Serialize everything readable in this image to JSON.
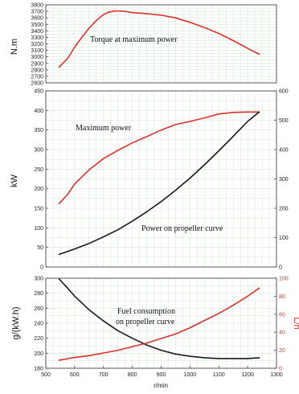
{
  "colors": {
    "red_series": "#d9322b",
    "black_series": "#1a1a1a",
    "grid": "#cfe7cf",
    "frame": "#333333"
  },
  "chart_data": [
    {
      "type": "line",
      "ylabel": "N.m",
      "xlim": [
        500,
        1300
      ],
      "ylim": [
        2600,
        3800
      ],
      "yticks": [
        2600,
        2700,
        2800,
        2900,
        3000,
        3100,
        3200,
        3300,
        3400,
        3500,
        3600,
        3700,
        3800
      ],
      "grid": true,
      "series": [
        {
          "name": "Torque at maximum power",
          "color": "red",
          "x": [
            546,
            560,
            578,
            600,
            625,
            650,
            675,
            700,
            720,
            740,
            760,
            780,
            800,
            850,
            900,
            950,
            1000,
            1050,
            1100,
            1150,
            1200,
            1240
          ],
          "y": [
            2840,
            2905,
            2990,
            3150,
            3300,
            3440,
            3560,
            3650,
            3690,
            3705,
            3705,
            3695,
            3680,
            3665,
            3640,
            3600,
            3530,
            3450,
            3360,
            3250,
            3130,
            3040
          ]
        }
      ]
    },
    {
      "type": "line",
      "ylabel": "kW",
      "xlim": [
        500,
        1300
      ],
      "ylim": [
        0,
        450
      ],
      "yticks": [
        0,
        50,
        100,
        150,
        200,
        250,
        300,
        350,
        400,
        450
      ],
      "y2lim": [
        0,
        600
      ],
      "y2ticks": [
        0,
        100,
        200,
        300,
        400,
        500,
        600
      ],
      "grid": true,
      "series": [
        {
          "name": "Maximum power",
          "color": "red",
          "x": [
            546,
            575,
            600,
            650,
            700,
            750,
            800,
            850,
            900,
            950,
            1000,
            1050,
            1100,
            1150,
            1200,
            1240
          ],
          "y": [
            162,
            185,
            212,
            248,
            277,
            298,
            317,
            333,
            350,
            364,
            372,
            381,
            391,
            395,
            396,
            396
          ]
        },
        {
          "name": "Power on propeller curve",
          "color": "black",
          "x": [
            546,
            600,
            650,
            700,
            750,
            800,
            850,
            900,
            950,
            1000,
            1050,
            1100,
            1150,
            1200,
            1240
          ],
          "y": [
            32,
            46,
            60,
            77,
            95,
            117,
            141,
            167,
            196,
            227,
            261,
            297,
            334,
            372,
            396
          ]
        }
      ]
    },
    {
      "type": "line",
      "ylabel": "g/(kW.h)",
      "y2label": "L/h",
      "xlabel": "r/min",
      "xlim": [
        500,
        1300
      ],
      "xticks": [
        500,
        600,
        700,
        800,
        900,
        1000,
        1100,
        1200,
        1300
      ],
      "ylim": [
        180,
        300
      ],
      "yticks": [
        180,
        200,
        220,
        240,
        260,
        280,
        300
      ],
      "y2lim": [
        0,
        100
      ],
      "y2ticks": [
        0,
        20,
        40,
        60,
        80,
        100
      ],
      "grid": true,
      "series": [
        {
          "name": "Fuel consumption on propeller curve",
          "color": "black",
          "x": [
            546,
            575,
            600,
            650,
            700,
            750,
            800,
            850,
            900,
            950,
            1000,
            1050,
            1100,
            1150,
            1200,
            1240
          ],
          "y": [
            299,
            287,
            276,
            258,
            243,
            230,
            220,
            211,
            204,
            199,
            196,
            194,
            193,
            193,
            193,
            194
          ]
        },
        {
          "name": "",
          "color": "red",
          "axis": "right",
          "x": [
            546,
            600,
            650,
            700,
            750,
            800,
            850,
            900,
            950,
            1000,
            1050,
            1100,
            1150,
            1200,
            1240
          ],
          "y": [
            9,
            12,
            14,
            17,
            20,
            24,
            28,
            33,
            38,
            45,
            53,
            61,
            70,
            80,
            89
          ]
        }
      ]
    }
  ],
  "annotations": {
    "torque": "Torque at maximum power",
    "max_power": "Maximum power",
    "propeller_power": "Power on propeller curve",
    "fuel_line1": "Fuel consumption",
    "fuel_line2": "on propeller curve"
  }
}
